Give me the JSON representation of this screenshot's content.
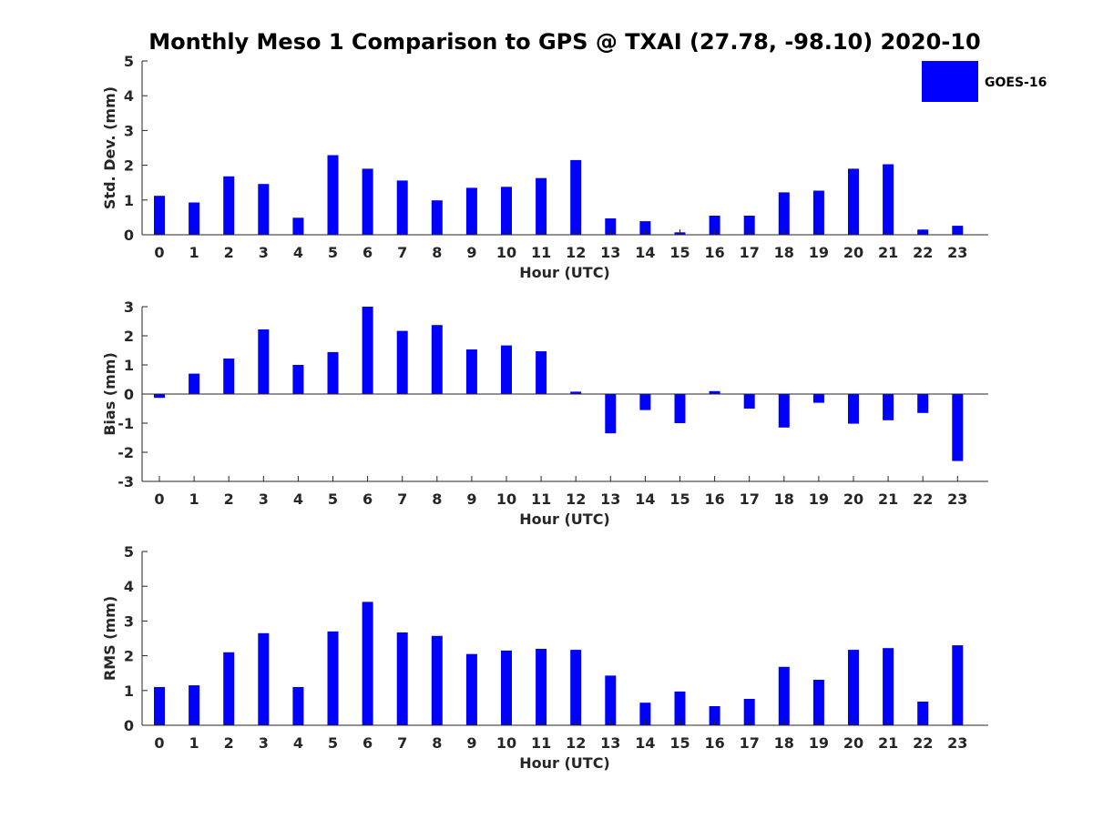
{
  "title": "Monthly Meso 1 Comparison to GPS @ TXAI (27.78, -98.10) 2020-10",
  "legend": {
    "label": "GOES-16",
    "color": "#0000ff",
    "placement": "top-right"
  },
  "chart_data": [
    {
      "type": "bar",
      "name": "std-dev",
      "categories": [
        "0",
        "1",
        "2",
        "3",
        "4",
        "5",
        "6",
        "7",
        "8",
        "9",
        "10",
        "11",
        "12",
        "13",
        "14",
        "15",
        "16",
        "17",
        "18",
        "19",
        "20",
        "21",
        "22",
        "23"
      ],
      "series": [
        {
          "name": "GOES-16",
          "values": [
            1.12,
            0.93,
            1.68,
            1.46,
            0.49,
            2.29,
            1.9,
            1.56,
            0.99,
            1.35,
            1.38,
            1.63,
            2.15,
            0.47,
            0.39,
            0.07,
            0.55,
            0.55,
            1.22,
            1.27,
            1.9,
            2.03,
            0.15,
            0.26
          ]
        }
      ],
      "xlabel": "Hour (UTC)",
      "ylabel": "Std. Dev. (mm)",
      "ylim": [
        0,
        5
      ],
      "yticks": [
        "0",
        "1",
        "2",
        "3",
        "4",
        "5"
      ],
      "grid": false
    },
    {
      "type": "bar",
      "name": "bias",
      "categories": [
        "0",
        "1",
        "2",
        "3",
        "4",
        "5",
        "6",
        "7",
        "8",
        "9",
        "10",
        "11",
        "12",
        "13",
        "14",
        "15",
        "16",
        "17",
        "18",
        "19",
        "20",
        "21",
        "22",
        "23"
      ],
      "series": [
        {
          "name": "GOES-16",
          "values": [
            -0.13,
            0.7,
            1.22,
            2.22,
            1.0,
            1.44,
            3.0,
            2.17,
            2.37,
            1.53,
            1.67,
            1.47,
            0.08,
            -1.35,
            -0.55,
            -1.0,
            0.1,
            -0.5,
            -1.15,
            -0.3,
            -1.02,
            -0.9,
            -0.65,
            -2.3
          ]
        }
      ],
      "xlabel": "Hour (UTC)",
      "ylabel": "Bias (mm)",
      "ylim": [
        -3,
        3
      ],
      "yticks": [
        "-3",
        "-2",
        "-1",
        "0",
        "1",
        "2",
        "3"
      ],
      "grid": false
    },
    {
      "type": "bar",
      "name": "rms",
      "categories": [
        "0",
        "1",
        "2",
        "3",
        "4",
        "5",
        "6",
        "7",
        "8",
        "9",
        "10",
        "11",
        "12",
        "13",
        "14",
        "15",
        "16",
        "17",
        "18",
        "19",
        "20",
        "21",
        "22",
        "23"
      ],
      "series": [
        {
          "name": "GOES-16",
          "values": [
            1.1,
            1.15,
            2.1,
            2.65,
            1.1,
            2.7,
            3.55,
            2.67,
            2.57,
            2.05,
            2.15,
            2.2,
            2.17,
            1.43,
            0.65,
            0.97,
            0.55,
            0.76,
            1.68,
            1.31,
            2.17,
            2.22,
            0.68,
            2.3
          ]
        }
      ],
      "xlabel": "Hour (UTC)",
      "ylabel": "RMS (mm)",
      "ylim": [
        0,
        5
      ],
      "yticks": [
        "0",
        "1",
        "2",
        "3",
        "4",
        "5"
      ],
      "grid": false
    }
  ]
}
